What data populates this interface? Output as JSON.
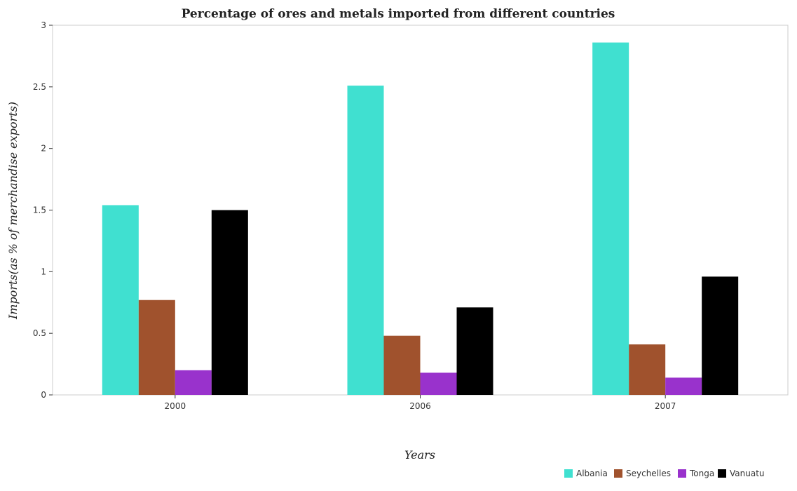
{
  "chart_data": {
    "type": "bar",
    "title": "Percentage of ores and metals imported from different countries",
    "xlabel": "Years",
    "ylabel": "Imports(as % of merchandise exports)",
    "categories": [
      "2000",
      "2006",
      "2007"
    ],
    "series": [
      {
        "name": "Albania",
        "color": "#40e0d0",
        "values": [
          1.54,
          2.51,
          2.86
        ]
      },
      {
        "name": "Seychelles",
        "color": "#a0522d",
        "values": [
          0.77,
          0.48,
          0.41
        ]
      },
      {
        "name": "Tonga",
        "color": "#9932cc",
        "values": [
          0.2,
          0.18,
          0.14
        ]
      },
      {
        "name": "Vanuatu",
        "color": "#000000",
        "values": [
          1.5,
          0.71,
          0.96
        ]
      }
    ],
    "ylim": [
      0,
      3
    ],
    "yticks": [
      "0",
      "0.5",
      "1",
      "1.5",
      "2",
      "2.5",
      "3"
    ],
    "grid": false,
    "legend_position": "bottom-right"
  }
}
